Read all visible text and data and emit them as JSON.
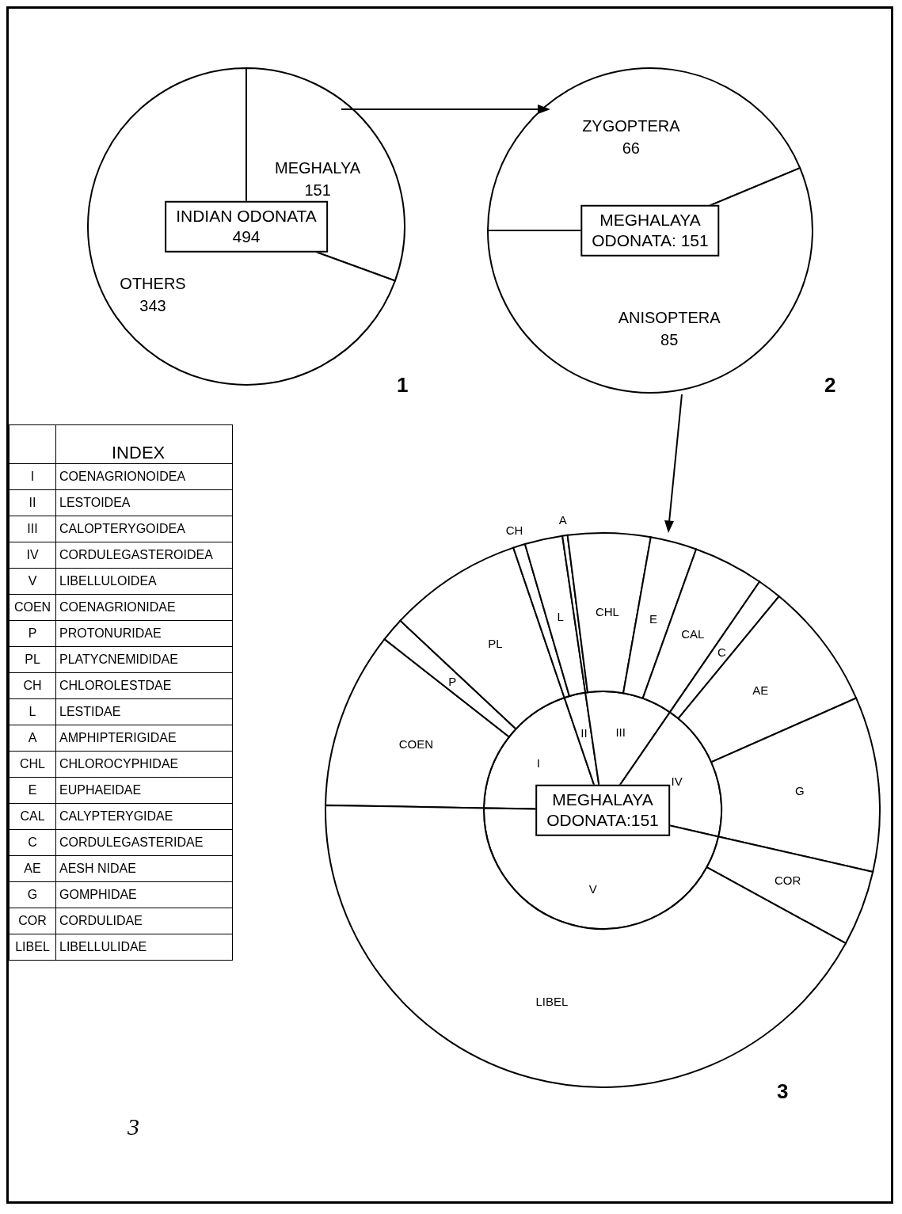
{
  "chart_data": [
    {
      "type": "pie",
      "title": "INDIAN ODONATA",
      "subtitle": "494",
      "categories": [
        "MEGHALYA",
        "OTHERS"
      ],
      "values": [
        151,
        343
      ],
      "colors": [
        "#ffffff",
        "#ffffff"
      ],
      "data_labels": true,
      "annotations": [
        "1"
      ]
    },
    {
      "type": "pie",
      "title": "MEGHALAYA",
      "subtitle": "ODONATA: 151",
      "categories": [
        "ZYGOPTERA",
        "ANISOPTERA"
      ],
      "values": [
        66,
        85
      ],
      "colors": [
        "#ffffff",
        "#ffffff"
      ],
      "data_labels": true,
      "annotations": [
        "2"
      ]
    },
    {
      "type": "pie",
      "title": "MEGHALAYA",
      "subtitle": "ODONATA:151",
      "categories": [
        "I",
        "II",
        "III",
        "IV",
        "V"
      ],
      "values": [
        19.5,
        2.9,
        11.9,
        19.0,
        46.7
      ],
      "colors": [
        "#ffffff",
        "#ffffff",
        "#ffffff",
        "#ffffff",
        "#ffffff"
      ]
    },
    {
      "type": "donut",
      "categories": [
        "COEN",
        "P",
        "PL",
        "CH",
        "L",
        "A",
        "CHL",
        "E",
        "CAL",
        "C",
        "AE",
        "G",
        "COR",
        "LIBEL"
      ],
      "values": [
        10.3,
        1.4,
        7.8,
        0.7,
        2.2,
        0.3,
        4.8,
        2.7,
        4.1,
        1.4,
        7.4,
        10.2,
        4.4,
        42.3
      ],
      "colors": [
        "#ffffff",
        "#ffffff",
        "#ffffff",
        "#ffffff",
        "#ffffff",
        "#ffffff",
        "#ffffff",
        "#ffffff",
        "#ffffff",
        "#ffffff",
        "#ffffff",
        "#ffffff",
        "#ffffff",
        "#ffffff"
      ],
      "annotations": [
        "3"
      ]
    },
    {
      "type": "other",
      "title": "INDEX",
      "y_categories": [
        "I",
        "II",
        "III",
        "IV",
        "V",
        "COEN",
        "P",
        "PL",
        "CH",
        "L",
        "A",
        "CHL",
        "E",
        "CAL",
        "C",
        "AE",
        "G",
        "COR",
        "LIBEL"
      ],
      "y2_categories": [
        "COENAGRIONOIDEA",
        "LESTOIDEA",
        "CALOPTERYGOIDEA",
        "CORDULEGASTEROIDEA",
        "LIBELLULOIDEA",
        "COENAGRIONIDAE",
        "PROTONURIDAE",
        "PLATYCNEMIDIDAE",
        "CHLOROLESTDAE",
        "LESTIDAE",
        "AMPHIPTERIGIDAE",
        "CHLOROCYPHIDAE",
        "EUPHAEIDAE",
        "CALYPTERYGIDAE",
        "CORDULEGASTERIDAE",
        "AESH NIDAE",
        "GOMPHIDAE",
        "CORDULIDAE",
        "LIBELLULIDAE"
      ],
      "annotations": [
        "3"
      ]
    }
  ]
}
